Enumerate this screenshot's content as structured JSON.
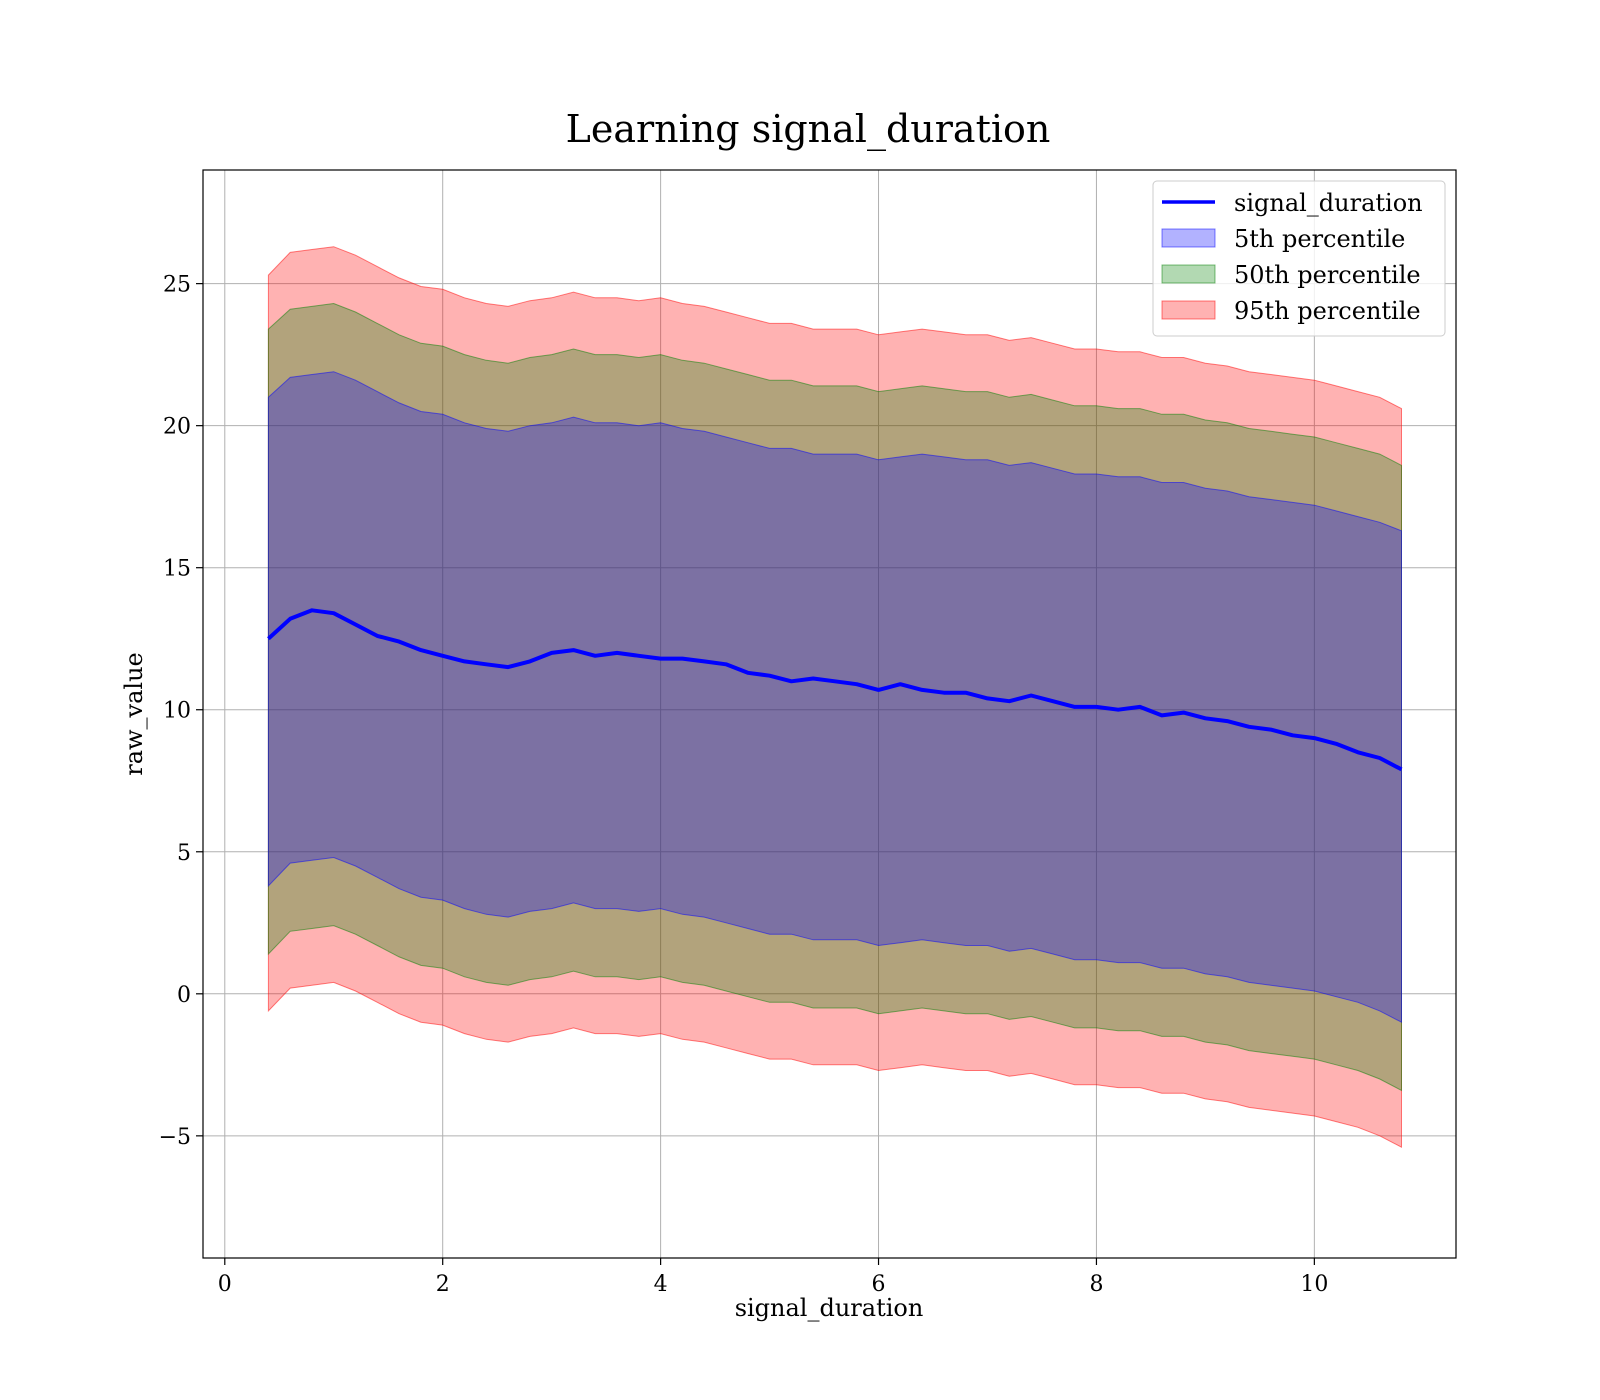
{
  "chart_data": {
    "type": "line",
    "title": "Learning signal_duration",
    "xlabel": "signal_duration",
    "ylabel": "raw_value",
    "xlim": [
      -0.2,
      11.3
    ],
    "ylim": [
      -9.3,
      29.0
    ],
    "x_ticks": [
      0,
      2,
      4,
      6,
      8,
      10
    ],
    "y_ticks": [
      -5,
      0,
      5,
      10,
      15,
      20,
      25
    ],
    "x_tick_labels": [
      "0",
      "2",
      "4",
      "6",
      "8",
      "10"
    ],
    "y_tick_labels": [
      "−5",
      "0",
      "5",
      "10",
      "15",
      "20",
      "25"
    ],
    "grid": true,
    "legend_position": "top-right",
    "x": [
      0.4,
      0.6,
      0.8,
      1.0,
      1.2,
      1.4,
      1.6,
      1.8,
      2.0,
      2.2,
      2.4,
      2.6,
      2.8,
      3.0,
      3.2,
      3.4,
      3.6,
      3.8,
      4.0,
      4.2,
      4.4,
      4.6,
      4.8,
      5.0,
      5.2,
      5.4,
      5.6,
      5.8,
      6.0,
      6.2,
      6.4,
      6.6,
      6.8,
      7.0,
      7.2,
      7.4,
      7.6,
      7.8,
      8.0,
      8.2,
      8.4,
      8.6,
      8.8,
      9.0,
      9.2,
      9.4,
      9.6,
      9.8,
      10.0,
      10.2,
      10.4,
      10.6,
      10.8
    ],
    "series": [
      {
        "name": "signal_duration",
        "kind": "line",
        "color": "#0000ff",
        "values": [
          12.5,
          13.2,
          13.5,
          13.4,
          13.0,
          12.6,
          12.4,
          12.1,
          11.9,
          11.7,
          11.6,
          11.5,
          11.7,
          12.0,
          12.1,
          11.9,
          12.0,
          11.9,
          11.8,
          11.8,
          11.7,
          11.6,
          11.3,
          11.2,
          11.0,
          11.1,
          11.0,
          10.9,
          10.7,
          10.9,
          10.7,
          10.6,
          10.6,
          10.4,
          10.3,
          10.5,
          10.3,
          10.1,
          10.1,
          10.0,
          10.1,
          9.8,
          9.9,
          9.7,
          9.6,
          9.4,
          9.3,
          9.1,
          9.0,
          8.8,
          8.5,
          8.3,
          7.9
        ]
      },
      {
        "name": "5th percentile",
        "kind": "band",
        "color": "#0000ff",
        "alpha": 0.3,
        "lower": [
          3.8,
          4.6,
          4.7,
          4.8,
          4.5,
          4.1,
          3.7,
          3.4,
          3.3,
          3.0,
          2.8,
          2.7,
          2.9,
          3.0,
          3.2,
          3.0,
          3.0,
          2.9,
          3.0,
          2.8,
          2.7,
          2.5,
          2.3,
          2.1,
          2.1,
          1.9,
          1.9,
          1.9,
          1.7,
          1.8,
          1.9,
          1.8,
          1.7,
          1.7,
          1.5,
          1.6,
          1.4,
          1.2,
          1.2,
          1.1,
          1.1,
          0.9,
          0.9,
          0.7,
          0.6,
          0.4,
          0.3,
          0.2,
          0.1,
          -0.1,
          -0.3,
          -0.6,
          -1.0
        ],
        "upper": [
          21.0,
          21.7,
          21.8,
          21.9,
          21.6,
          21.2,
          20.8,
          20.5,
          20.4,
          20.1,
          19.9,
          19.8,
          20.0,
          20.1,
          20.3,
          20.1,
          20.1,
          20.0,
          20.1,
          19.9,
          19.8,
          19.6,
          19.4,
          19.2,
          19.2,
          19.0,
          19.0,
          19.0,
          18.8,
          18.9,
          19.0,
          18.9,
          18.8,
          18.8,
          18.6,
          18.7,
          18.5,
          18.3,
          18.3,
          18.2,
          18.2,
          18.0,
          18.0,
          17.8,
          17.7,
          17.5,
          17.4,
          17.3,
          17.2,
          17.0,
          16.8,
          16.6,
          16.3
        ]
      },
      {
        "name": "50th percentile",
        "kind": "band",
        "color": "#008000",
        "alpha": 0.3,
        "lower": [
          1.4,
          2.2,
          2.3,
          2.4,
          2.1,
          1.7,
          1.3,
          1.0,
          0.9,
          0.6,
          0.4,
          0.3,
          0.5,
          0.6,
          0.8,
          0.6,
          0.6,
          0.5,
          0.6,
          0.4,
          0.3,
          0.1,
          -0.1,
          -0.3,
          -0.3,
          -0.5,
          -0.5,
          -0.5,
          -0.7,
          -0.6,
          -0.5,
          -0.6,
          -0.7,
          -0.7,
          -0.9,
          -0.8,
          -1.0,
          -1.2,
          -1.2,
          -1.3,
          -1.3,
          -1.5,
          -1.5,
          -1.7,
          -1.8,
          -2.0,
          -2.1,
          -2.2,
          -2.3,
          -2.5,
          -2.7,
          -3.0,
          -3.4
        ],
        "upper": [
          23.4,
          24.1,
          24.2,
          24.3,
          24.0,
          23.6,
          23.2,
          22.9,
          22.8,
          22.5,
          22.3,
          22.2,
          22.4,
          22.5,
          22.7,
          22.5,
          22.5,
          22.4,
          22.5,
          22.3,
          22.2,
          22.0,
          21.8,
          21.6,
          21.6,
          21.4,
          21.4,
          21.4,
          21.2,
          21.3,
          21.4,
          21.3,
          21.2,
          21.2,
          21.0,
          21.1,
          20.9,
          20.7,
          20.7,
          20.6,
          20.6,
          20.4,
          20.4,
          20.2,
          20.1,
          19.9,
          19.8,
          19.7,
          19.6,
          19.4,
          19.2,
          19.0,
          18.6
        ]
      },
      {
        "name": "95th percentile",
        "kind": "band",
        "color": "#ff0000",
        "alpha": 0.3,
        "lower": [
          -0.6,
          0.2,
          0.3,
          0.4,
          0.1,
          -0.3,
          -0.7,
          -1.0,
          -1.1,
          -1.4,
          -1.6,
          -1.7,
          -1.5,
          -1.4,
          -1.2,
          -1.4,
          -1.4,
          -1.5,
          -1.4,
          -1.6,
          -1.7,
          -1.9,
          -2.1,
          -2.3,
          -2.3,
          -2.5,
          -2.5,
          -2.5,
          -2.7,
          -2.6,
          -2.5,
          -2.6,
          -2.7,
          -2.7,
          -2.9,
          -2.8,
          -3.0,
          -3.2,
          -3.2,
          -3.3,
          -3.3,
          -3.5,
          -3.5,
          -3.7,
          -3.8,
          -4.0,
          -4.1,
          -4.2,
          -4.3,
          -4.5,
          -4.7,
          -5.0,
          -5.4
        ],
        "upper": [
          25.3,
          26.1,
          26.2,
          26.3,
          26.0,
          25.6,
          25.2,
          24.9,
          24.8,
          24.5,
          24.3,
          24.2,
          24.4,
          24.5,
          24.7,
          24.5,
          24.5,
          24.4,
          24.5,
          24.3,
          24.2,
          24.0,
          23.8,
          23.6,
          23.6,
          23.4,
          23.4,
          23.4,
          23.2,
          23.3,
          23.4,
          23.3,
          23.2,
          23.2,
          23.0,
          23.1,
          22.9,
          22.7,
          22.7,
          22.6,
          22.6,
          22.4,
          22.4,
          22.2,
          22.1,
          21.9,
          21.8,
          21.7,
          21.6,
          21.4,
          21.2,
          21.0,
          20.6
        ]
      }
    ]
  }
}
